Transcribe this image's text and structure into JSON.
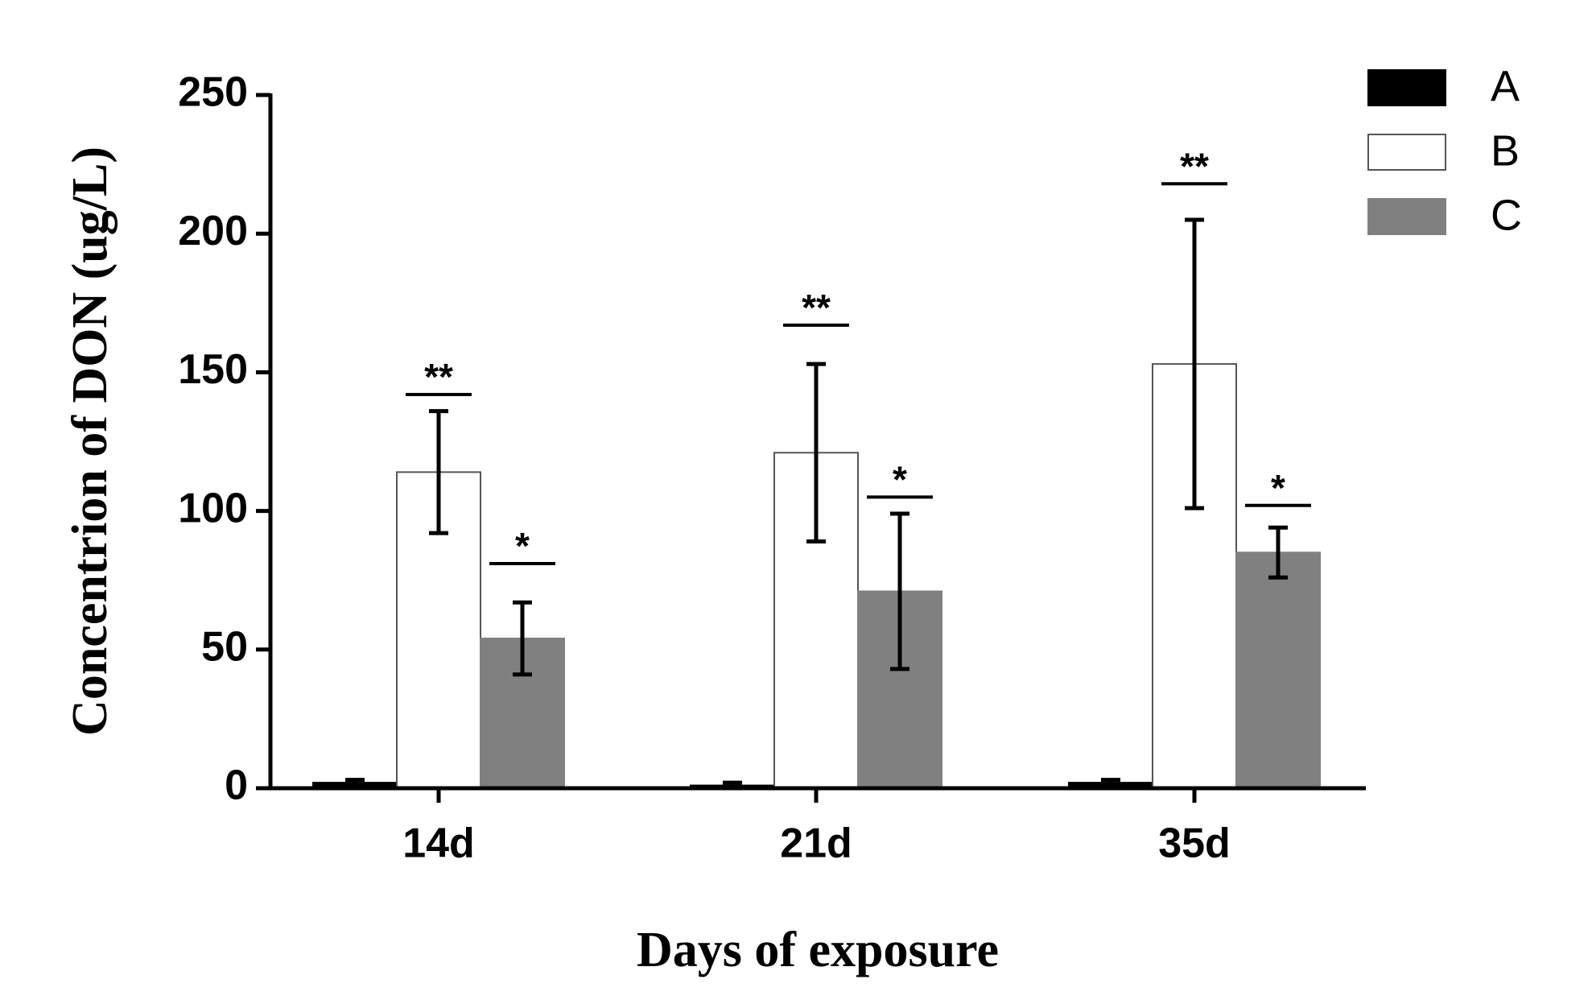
{
  "chart_data": {
    "type": "bar",
    "ylabel": "Concentrion of DON (ug/L)",
    "xlabel": "Days of exposure",
    "categories": [
      "14d",
      "21d",
      "35d"
    ],
    "series": [
      {
        "name": "A",
        "color": "#000000",
        "values": [
          2,
          1,
          2
        ],
        "errors": [
          1,
          1,
          1
        ]
      },
      {
        "name": "B",
        "color": "#ffffff",
        "values": [
          114,
          121,
          153
        ],
        "errors": [
          22,
          32,
          52
        ]
      },
      {
        "name": "C",
        "color": "#808080",
        "values": [
          54,
          71,
          85
        ],
        "errors": [
          13,
          28,
          9
        ]
      }
    ],
    "annotations": [
      {
        "text": "**",
        "series": 1,
        "category": 0,
        "y": 142
      },
      {
        "text": "*",
        "series": 2,
        "category": 0,
        "y": 81
      },
      {
        "text": "**",
        "series": 1,
        "category": 1,
        "y": 167
      },
      {
        "text": "*",
        "series": 2,
        "category": 1,
        "y": 105
      },
      {
        "text": "**",
        "series": 1,
        "category": 2,
        "y": 218
      },
      {
        "text": "*",
        "series": 2,
        "category": 2,
        "y": 102
      }
    ],
    "ylim": [
      0,
      250
    ],
    "yticks": [
      0,
      50,
      100,
      150,
      200,
      250
    ],
    "legend": "top-right"
  }
}
